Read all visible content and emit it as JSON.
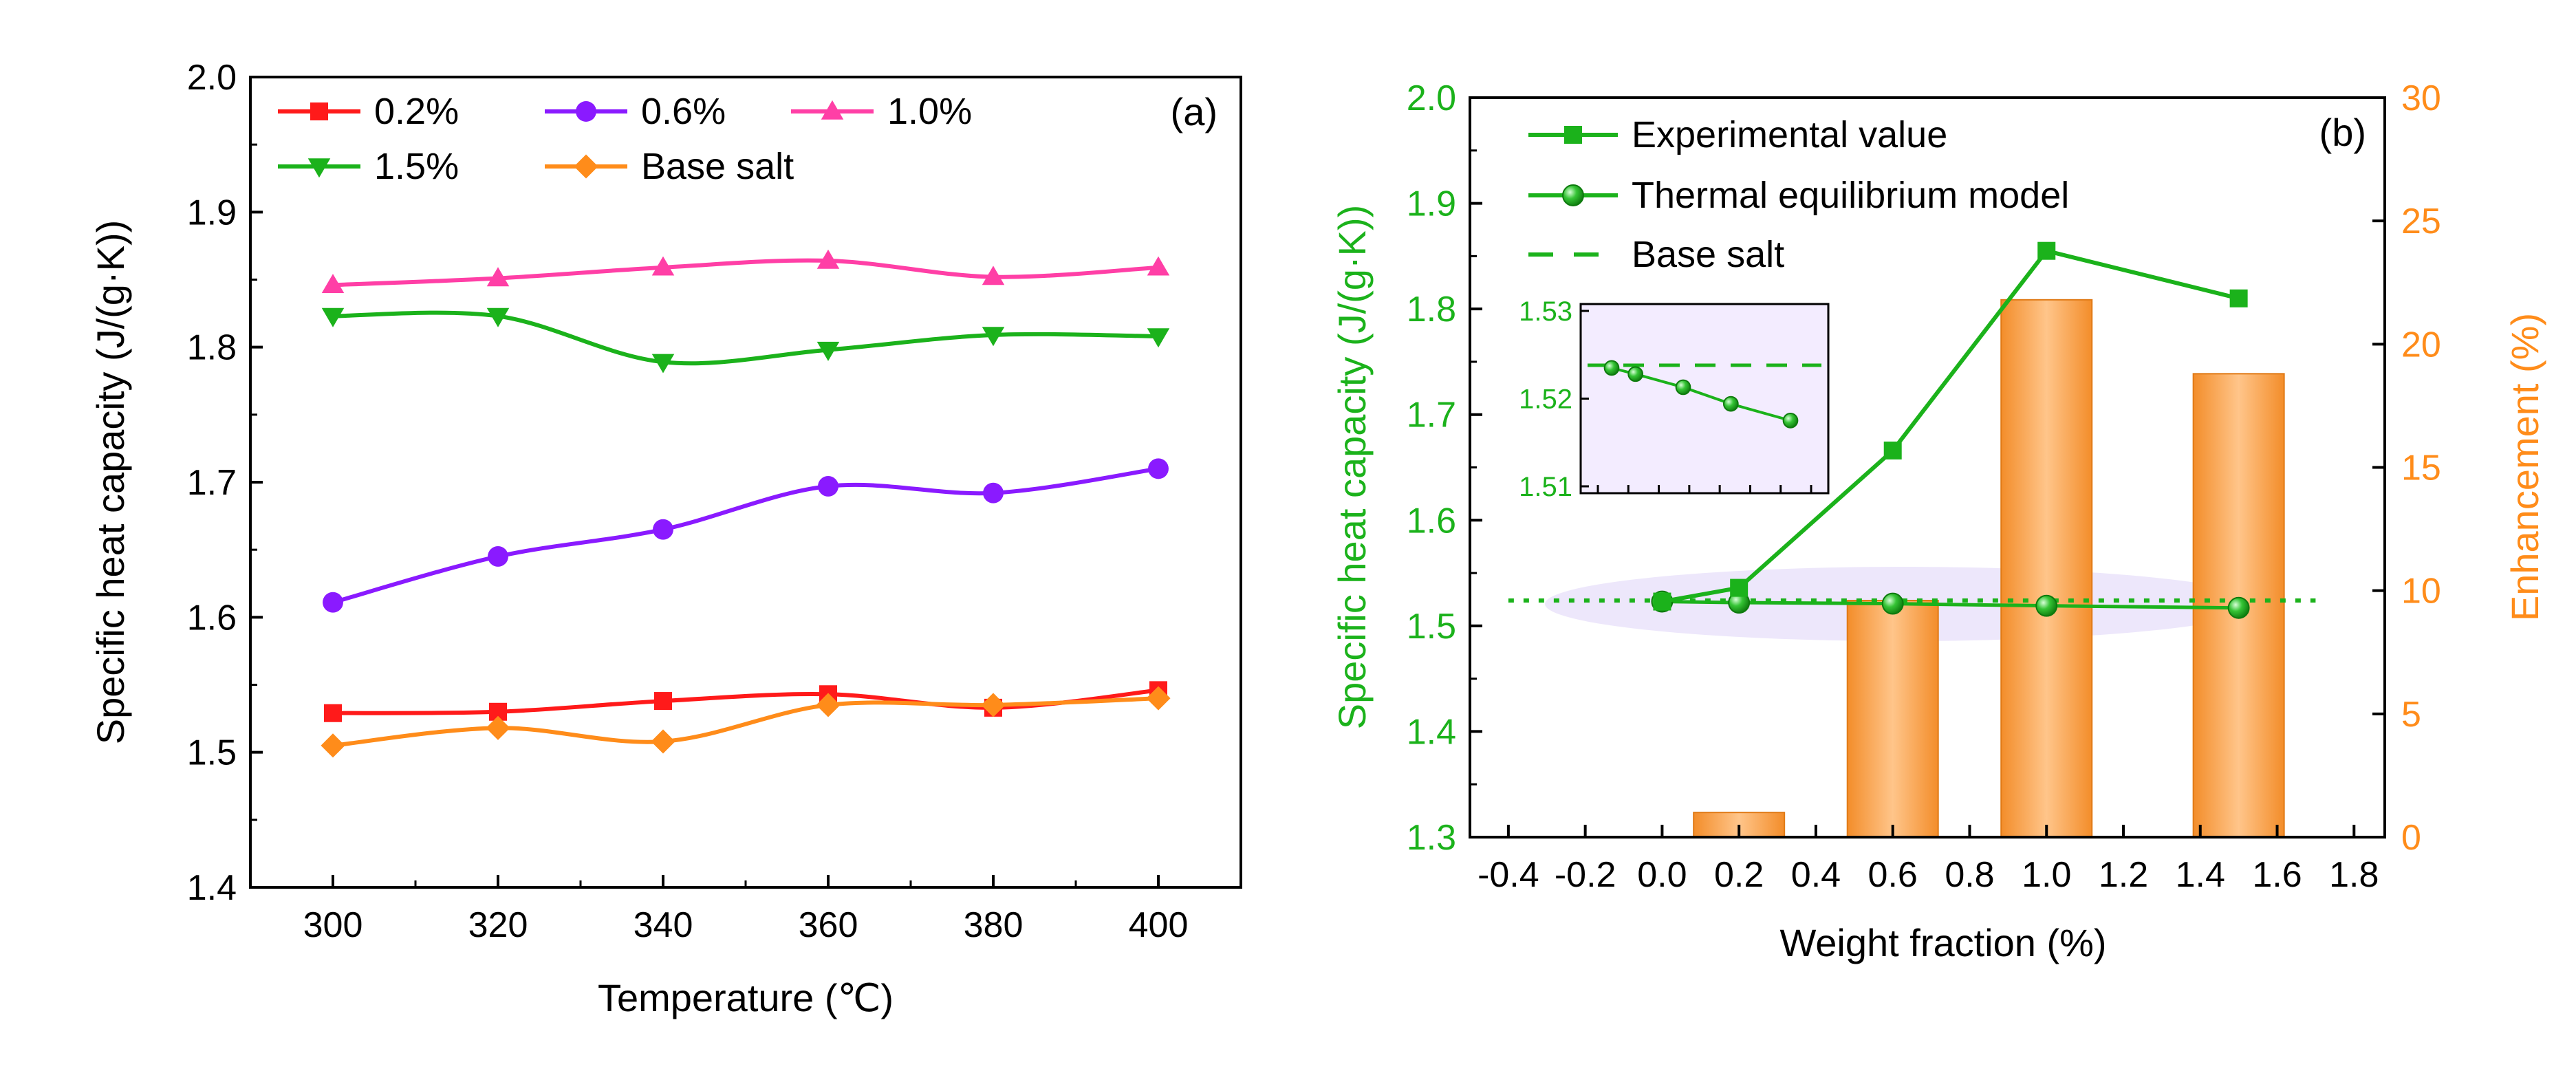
{
  "colors": {
    "red": "#ff1a1a",
    "purple": "#8a1aff",
    "pink": "#ff3fa6",
    "green": "#1bb21b",
    "orange": "#ff8c1a",
    "bar_light": "#ffc58a",
    "bar_dark": "#f38d2a",
    "inset_bg": "#f3ecff",
    "ellipse": "#ece6fb"
  },
  "chart_data": [
    {
      "type": "line",
      "panel_label": "(a)",
      "xlabel": "Temperature (℃)",
      "ylabel": "Specific heat capacity (J/(g·K))",
      "xlim": [
        290,
        410
      ],
      "ylim": [
        1.4,
        2.0
      ],
      "x_ticks": [
        "300",
        "320",
        "340",
        "360",
        "380",
        "400"
      ],
      "y_ticks": [
        "1.4",
        "1.5",
        "1.6",
        "1.7",
        "1.8",
        "1.9",
        "2.0"
      ],
      "x": [
        300,
        320,
        340,
        360,
        380,
        400
      ],
      "series": [
        {
          "name": "0.2%",
          "color": "red",
          "marker": "square",
          "values": [
            1.529,
            1.53,
            1.538,
            1.543,
            1.533,
            1.546
          ]
        },
        {
          "name": "0.6%",
          "color": "purple",
          "marker": "circle",
          "values": [
            1.611,
            1.645,
            1.665,
            1.697,
            1.692,
            1.71
          ]
        },
        {
          "name": "1.0%",
          "color": "pink",
          "marker": "triangle-up",
          "values": [
            1.846,
            1.851,
            1.859,
            1.864,
            1.852,
            1.859
          ]
        },
        {
          "name": "1.5%",
          "color": "green",
          "marker": "triangle-down",
          "values": [
            1.823,
            1.823,
            1.789,
            1.798,
            1.809,
            1.808
          ]
        },
        {
          "name": "Base salt",
          "color": "orange",
          "marker": "diamond",
          "values": [
            1.505,
            1.518,
            1.508,
            1.535,
            1.535,
            1.54
          ]
        }
      ]
    },
    {
      "type": "bar+line",
      "panel_label": "(b)",
      "xlabel": "Weight fraction (%)",
      "ylabel": "Specific heat capacity (J/(g·K))",
      "y2label": "Enhancement (%)",
      "xlim": [
        -0.5,
        1.88
      ],
      "ylim": [
        1.3,
        2.0
      ],
      "y2lim": [
        0,
        30
      ],
      "x_ticks": [
        "-0.4",
        "-0.2",
        "0.0",
        "0.2",
        "0.4",
        "0.6",
        "0.8",
        "1.0",
        "1.2",
        "1.4",
        "1.6",
        "1.8"
      ],
      "y_ticks": [
        "1.3",
        "1.4",
        "1.5",
        "1.6",
        "1.7",
        "1.8",
        "1.9",
        "2.0"
      ],
      "y2_ticks": [
        "0",
        "5",
        "10",
        "15",
        "20",
        "25",
        "30"
      ],
      "legend": [
        "Experimental value",
        "Thermal equilibrium model",
        "Base salt"
      ],
      "experimental": {
        "x": [
          0.0,
          0.2,
          0.6,
          1.0,
          1.5
        ],
        "values": [
          1.523,
          1.536,
          1.666,
          1.855,
          1.81
        ]
      },
      "model": {
        "x": [
          0.0,
          0.2,
          0.6,
          1.0,
          1.5
        ],
        "values": [
          1.523,
          1.522,
          1.521,
          1.519,
          1.517
        ]
      },
      "base_salt": 1.524,
      "base_salt_xrange": [
        -0.4,
        1.7
      ],
      "bars": {
        "x": [
          0.2,
          0.6,
          1.0,
          1.5
        ],
        "values": [
          1.0,
          9.6,
          21.8,
          18.8
        ]
      },
      "inset": {
        "ylim": [
          1.51,
          1.53
        ],
        "y_ticks": [
          "1.51",
          "1.52",
          "1.53"
        ],
        "x": [
          0.0,
          0.2,
          0.6,
          1.0,
          1.5
        ],
        "model": [
          1.5235,
          1.5228,
          1.5213,
          1.5194,
          1.5175
        ],
        "base_salt": 1.5238
      }
    }
  ]
}
